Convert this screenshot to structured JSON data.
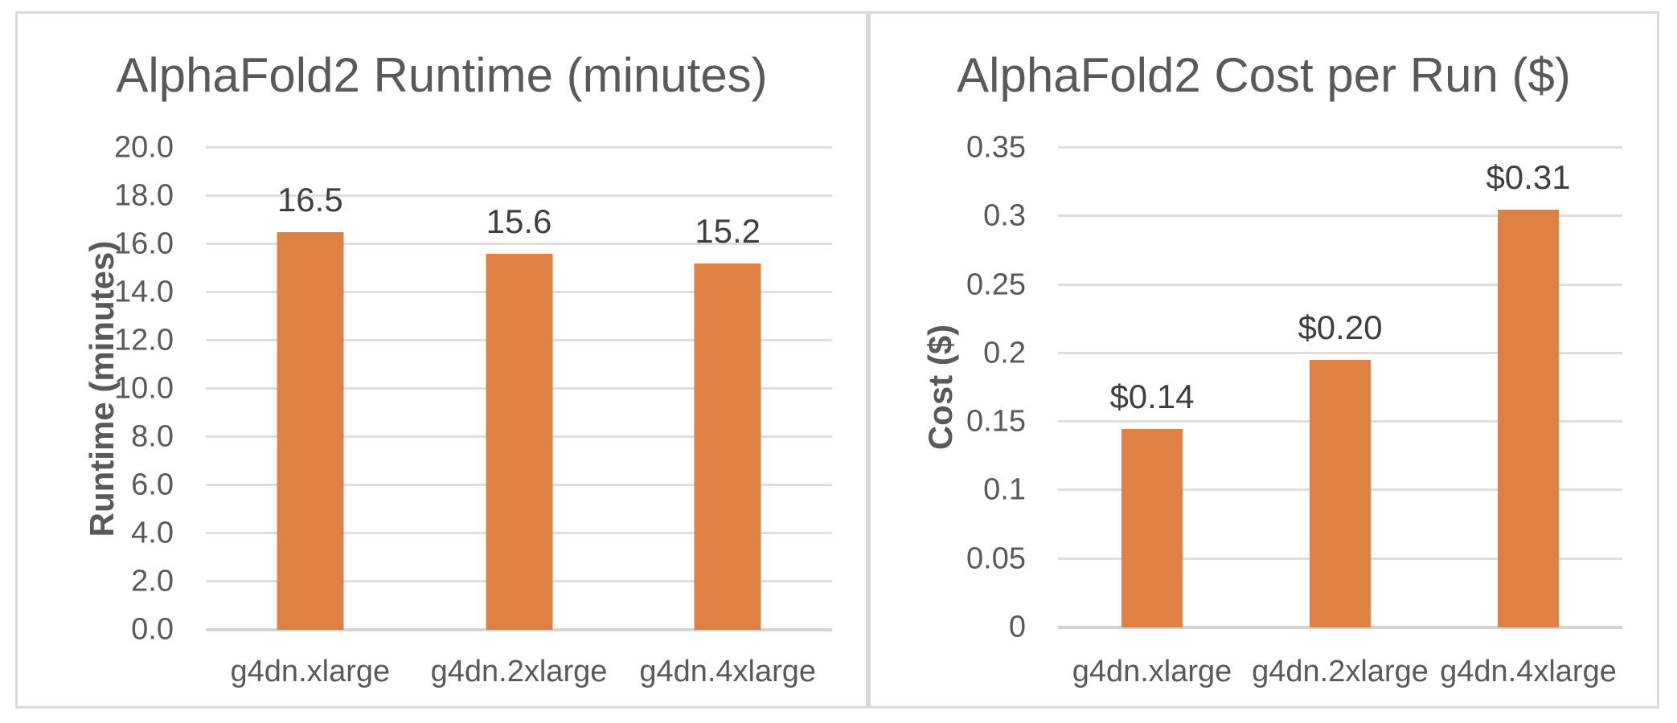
{
  "colors": {
    "bar": "#DE8142",
    "gridline": "#DDDDDD",
    "axis_line": "#D4D4D4",
    "text": "#595959",
    "data_label": "#3F3F3F",
    "card_border": "#D9D9D9",
    "background": "#FFFFFF"
  },
  "chart_data": [
    {
      "type": "bar",
      "title": "AlphaFold2 Runtime (minutes)",
      "xlabel": "",
      "ylabel": "Runtime (minutes)",
      "categories": [
        "g4dn.xlarge",
        "g4dn.2xlarge",
        "g4dn.4xlarge"
      ],
      "values": [
        16.5,
        15.6,
        15.2
      ],
      "data_labels": [
        "16.5",
        "15.6",
        "15.2"
      ],
      "ylim": [
        0,
        20
      ],
      "y_ticks": [
        {
          "value": 0,
          "label": "0.0"
        },
        {
          "value": 2,
          "label": "2.0"
        },
        {
          "value": 4,
          "label": "4.0"
        },
        {
          "value": 6,
          "label": "6.0"
        },
        {
          "value": 8,
          "label": "8.0"
        },
        {
          "value": 10,
          "label": "10.0"
        },
        {
          "value": 12,
          "label": "12.0"
        },
        {
          "value": 14,
          "label": "14.0"
        },
        {
          "value": 16,
          "label": "16.0"
        },
        {
          "value": 18,
          "label": "18.0"
        },
        {
          "value": 20,
          "label": "20.0"
        }
      ],
      "grid": true,
      "legend": "none",
      "bar_color": "#DE8142"
    },
    {
      "type": "bar",
      "title": "AlphaFold2 Cost per Run ($)",
      "xlabel": "",
      "ylabel": "Cost ($)",
      "categories": [
        "g4dn.xlarge",
        "g4dn.2xlarge",
        "g4dn.4xlarge"
      ],
      "values": [
        0.145,
        0.195,
        0.305
      ],
      "data_labels": [
        "$0.14",
        "$0.20",
        "$0.31"
      ],
      "ylim": [
        0,
        0.35
      ],
      "y_ticks": [
        {
          "value": 0,
          "label": "0"
        },
        {
          "value": 0.05,
          "label": "0.05"
        },
        {
          "value": 0.1,
          "label": "0.1"
        },
        {
          "value": 0.15,
          "label": "0.15"
        },
        {
          "value": 0.2,
          "label": "0.2"
        },
        {
          "value": 0.25,
          "label": "0.25"
        },
        {
          "value": 0.3,
          "label": "0.3"
        },
        {
          "value": 0.35,
          "label": "0.35"
        }
      ],
      "grid": true,
      "legend": "none",
      "bar_color": "#DE8142"
    }
  ]
}
